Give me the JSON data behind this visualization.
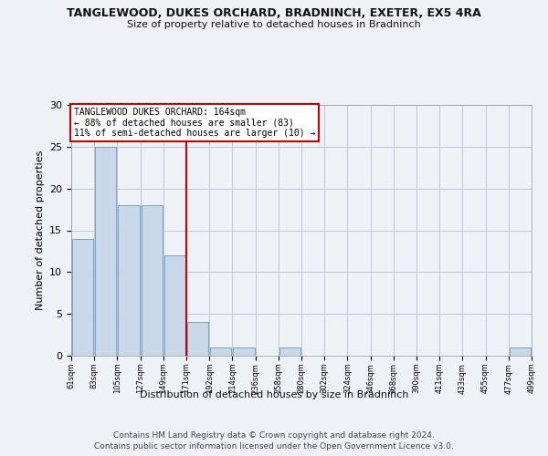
{
  "title": "TANGLEWOOD, DUKES ORCHARD, BRADNINCH, EXETER, EX5 4RA",
  "subtitle": "Size of property relative to detached houses in Bradninch",
  "xlabel_bottom": "Distribution of detached houses by size in Bradninch",
  "ylabel": "Number of detached properties",
  "bar_values": [
    14,
    25,
    18,
    18,
    12,
    4,
    1,
    1,
    0,
    1,
    0,
    0,
    0,
    0,
    0,
    0,
    0,
    0,
    0,
    1
  ],
  "bar_labels": [
    "61sqm",
    "83sqm",
    "105sqm",
    "127sqm",
    "149sqm",
    "171sqm",
    "192sqm",
    "214sqm",
    "236sqm",
    "258sqm",
    "280sqm",
    "302sqm",
    "324sqm",
    "346sqm",
    "368sqm",
    "390sqm",
    "411sqm",
    "433sqm",
    "455sqm",
    "477sqm",
    "499sqm"
  ],
  "bar_color": "#c8d8e8",
  "bar_edge_color": "#6699bb",
  "red_line_x": 4.5,
  "annotation_title": "TANGLEWOOD DUKES ORCHARD: 164sqm",
  "annotation_line2": "← 88% of detached houses are smaller (83)",
  "annotation_line3": "11% of semi-detached houses are larger (10) →",
  "annotation_box_color": "#ffffff",
  "annotation_box_edge": "#cc0000",
  "red_line_color": "#cc0000",
  "ylim": [
    0,
    30
  ],
  "yticks": [
    0,
    5,
    10,
    15,
    20,
    25,
    30
  ],
  "footer_line1": "Contains HM Land Registry data © Crown copyright and database right 2024.",
  "footer_line2": "Contains public sector information licensed under the Open Government Licence v3.0.",
  "background_color": "#eef2f7",
  "grid_color": "#c0c8d8"
}
